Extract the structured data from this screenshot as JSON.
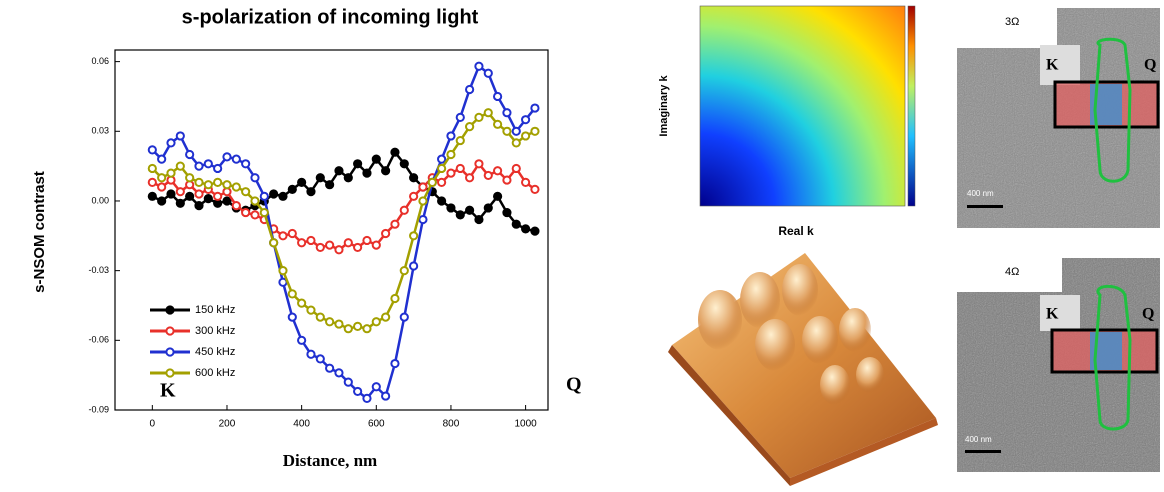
{
  "chart_data": {
    "type": "line",
    "title": "s-polarization of incoming light",
    "x_label": "Distance, nm",
    "y_label": "s-NSOM contrast",
    "x": [
      0,
      25,
      50,
      75,
      100,
      125,
      150,
      175,
      200,
      225,
      250,
      275,
      300,
      325,
      350,
      375,
      400,
      425,
      450,
      475,
      500,
      525,
      550,
      575,
      600,
      625,
      650,
      675,
      700,
      725,
      750,
      775,
      800,
      825,
      850,
      875,
      900,
      925,
      950,
      975,
      1000,
      1025
    ],
    "series": [
      {
        "name": "150 kHz",
        "color": "#000000",
        "values": [
          0.002,
          0.0,
          0.003,
          -0.001,
          0.002,
          -0.002,
          0.001,
          -0.001,
          0.0,
          -0.003,
          -0.004,
          -0.002,
          0.0,
          0.003,
          0.002,
          0.005,
          0.008,
          0.004,
          0.01,
          0.007,
          0.013,
          0.01,
          0.016,
          0.012,
          0.018,
          0.013,
          0.021,
          0.016,
          0.01,
          0.006,
          0.004,
          0.0,
          -0.003,
          -0.006,
          -0.004,
          -0.008,
          -0.003,
          0.002,
          -0.005,
          -0.01,
          -0.012,
          -0.013
        ]
      },
      {
        "name": "300 kHz",
        "color": "#e8302a",
        "values": [
          0.008,
          0.006,
          0.009,
          0.004,
          0.007,
          0.003,
          0.005,
          0.002,
          0.004,
          -0.002,
          -0.005,
          -0.006,
          -0.008,
          -0.012,
          -0.015,
          -0.014,
          -0.018,
          -0.017,
          -0.02,
          -0.019,
          -0.021,
          -0.018,
          -0.02,
          -0.017,
          -0.019,
          -0.014,
          -0.01,
          -0.004,
          0.002,
          0.006,
          0.01,
          0.008,
          0.012,
          0.014,
          0.01,
          0.016,
          0.011,
          0.013,
          0.009,
          0.014,
          0.008,
          0.005
        ]
      },
      {
        "name": "450 kHz",
        "color": "#2030d0",
        "values": [
          0.022,
          0.018,
          0.025,
          0.028,
          0.02,
          0.015,
          0.016,
          0.014,
          0.019,
          0.018,
          0.016,
          0.01,
          0.002,
          -0.018,
          -0.035,
          -0.05,
          -0.06,
          -0.066,
          -0.068,
          -0.072,
          -0.074,
          -0.078,
          -0.082,
          -0.085,
          -0.08,
          -0.084,
          -0.07,
          -0.05,
          -0.028,
          -0.008,
          0.008,
          0.018,
          0.028,
          0.036,
          0.048,
          0.058,
          0.055,
          0.045,
          0.038,
          0.03,
          0.035,
          0.04
        ]
      },
      {
        "name": "600 kHz",
        "color": "#a3a000",
        "values": [
          0.014,
          0.01,
          0.012,
          0.015,
          0.01,
          0.008,
          0.007,
          0.008,
          0.007,
          0.006,
          0.004,
          0.0,
          -0.005,
          -0.018,
          -0.03,
          -0.04,
          -0.044,
          -0.047,
          -0.05,
          -0.052,
          -0.053,
          -0.055,
          -0.054,
          -0.055,
          -0.052,
          -0.05,
          -0.042,
          -0.03,
          -0.015,
          0.0,
          0.008,
          0.014,
          0.02,
          0.026,
          0.032,
          0.036,
          0.038,
          0.033,
          0.03,
          0.025,
          0.028,
          0.03
        ]
      }
    ],
    "xlim": [
      -100,
      1060
    ],
    "xticks": [
      0,
      200,
      400,
      600,
      800,
      1000
    ],
    "ylim": [
      -0.09,
      0.065
    ],
    "yticks": [
      0.06,
      0.03,
      {
        "value": 0,
        "label": "0.00"
      },
      -0.03,
      -0.06,
      -0.09
    ],
    "legend": "lower left",
    "annotations": [
      "K",
      "Q"
    ]
  },
  "panels": {
    "heatmap": {
      "x_label": "Real k",
      "y_label": "Imaginary k"
    },
    "images": [
      {
        "label": "3Ω",
        "left": "K",
        "right": "Q",
        "scale": "400 nm"
      },
      {
        "label": "4Ω",
        "left": "K",
        "right": "Q",
        "scale": "400 nm"
      }
    ]
  }
}
